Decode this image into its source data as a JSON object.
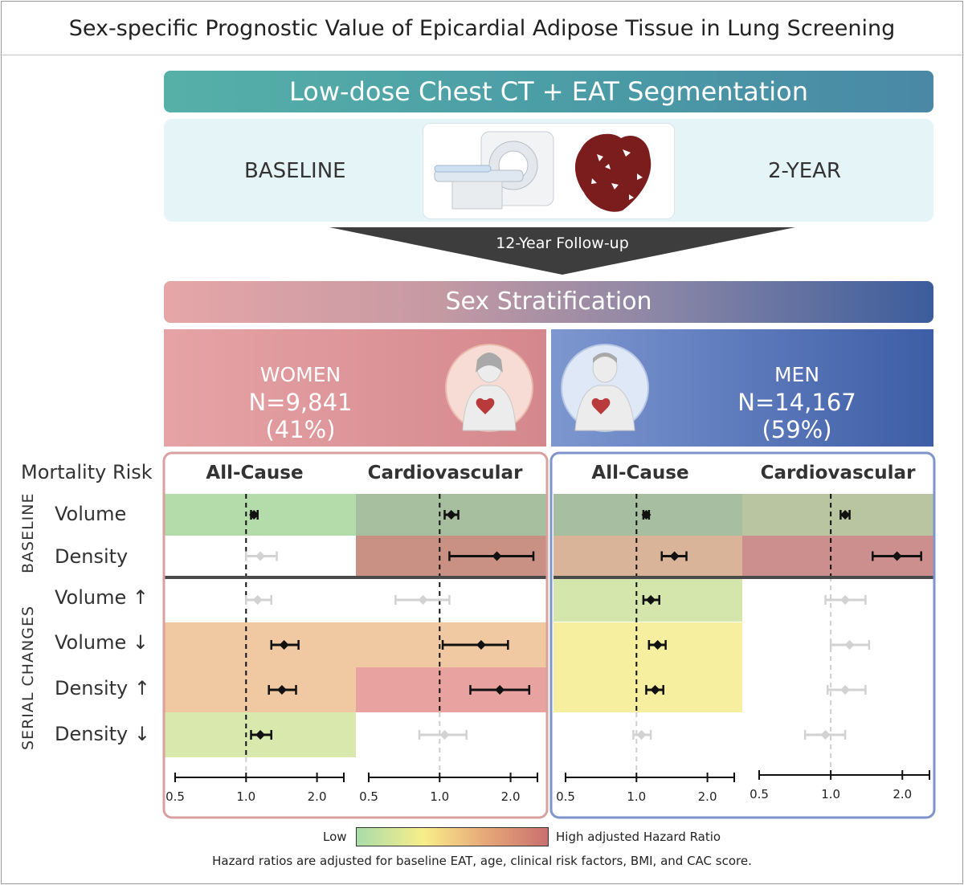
{
  "title": "Sex-specific Prognostic Value of Epicardial Adipose Tissue in Lung Screening",
  "imaging": {
    "banner": "Low-dose Chest CT + EAT Segmentation",
    "left_label": "BASELINE",
    "right_label": "2-YEAR",
    "illustration_icons": [
      "ct-scanner-icon",
      "eat-heart-icon"
    ]
  },
  "follow_up": "12-Year Follow-up",
  "stratification": {
    "banner": "Sex Stratification",
    "women": {
      "label": "WOMEN",
      "count": "N=9,841 (41%)",
      "icon": "female-torso-heart-icon"
    },
    "men": {
      "label": "MEN",
      "count": "N=14,167 (59%)",
      "icon": "male-torso-heart-icon"
    }
  },
  "table": {
    "header_label": "Mortality Risk",
    "group_labels": {
      "baseline": "BASELINE",
      "serial": "SERIAL CHANGES"
    },
    "column_titles": [
      "All-Cause",
      "Cardiovascular",
      "All-Cause",
      "Cardiovascular"
    ],
    "row_labels": [
      {
        "text": "Volume",
        "arrow": ""
      },
      {
        "text": "Density",
        "arrow": ""
      },
      {
        "text": "Volume",
        "arrow": "↑"
      },
      {
        "text": "Volume",
        "arrow": "↓"
      },
      {
        "text": "Density",
        "arrow": "↑"
      },
      {
        "text": "Density",
        "arrow": "↓"
      }
    ],
    "axis_ticks": [
      "0.5",
      "1.0",
      "2.0"
    ]
  },
  "chart_data": {
    "type": "forest",
    "scale": "log",
    "xlim": [
      0.5,
      2.6
    ],
    "reference_line": 1.0,
    "rows": [
      "Baseline Volume",
      "Baseline Density",
      "Volume increase",
      "Volume decrease",
      "Density increase",
      "Density decrease"
    ],
    "panels": [
      {
        "name": "Women All-Cause",
        "estimates": [
          {
            "hr": 1.08,
            "lo": 1.05,
            "hi": 1.12,
            "significant": true,
            "cell_color": "#b3dcaa"
          },
          {
            "hr": 1.15,
            "lo": 1.0,
            "hi": 1.35,
            "significant": false,
            "cell_color": "#ffffff"
          },
          {
            "hr": 1.12,
            "lo": 1.0,
            "hi": 1.28,
            "significant": false,
            "cell_color": "#ffffff"
          },
          {
            "hr": 1.45,
            "lo": 1.28,
            "hi": 1.67,
            "significant": true,
            "cell_color": "#f0c9a2"
          },
          {
            "hr": 1.42,
            "lo": 1.25,
            "hi": 1.63,
            "significant": true,
            "cell_color": "#f0c9a2"
          },
          {
            "hr": 1.15,
            "lo": 1.05,
            "hi": 1.28,
            "significant": true,
            "cell_color": "#d9e8ac"
          }
        ]
      },
      {
        "name": "Women Cardiovascular",
        "estimates": [
          {
            "hr": 1.12,
            "lo": 1.05,
            "hi": 1.2,
            "significant": true,
            "cell_color": "#a7bf9e"
          },
          {
            "hr": 1.75,
            "lo": 1.1,
            "hi": 2.5,
            "significant": true,
            "cell_color": "#c99184"
          },
          {
            "hr": 0.85,
            "lo": 0.65,
            "hi": 1.1,
            "significant": false,
            "cell_color": "#ffffff"
          },
          {
            "hr": 1.5,
            "lo": 1.03,
            "hi": 1.95,
            "significant": true,
            "cell_color": "#f0c9a2"
          },
          {
            "hr": 1.8,
            "lo": 1.35,
            "hi": 2.4,
            "significant": true,
            "cell_color": "#e8a3a0"
          },
          {
            "hr": 1.05,
            "lo": 0.82,
            "hi": 1.3,
            "significant": false,
            "cell_color": "#ffffff"
          }
        ]
      },
      {
        "name": "Men All-Cause",
        "estimates": [
          {
            "hr": 1.1,
            "lo": 1.07,
            "hi": 1.13,
            "significant": true,
            "cell_color": "#a7bfa0"
          },
          {
            "hr": 1.45,
            "lo": 1.28,
            "hi": 1.63,
            "significant": true,
            "cell_color": "#d9b499"
          },
          {
            "hr": 1.15,
            "lo": 1.07,
            "hi": 1.25,
            "significant": true,
            "cell_color": "#d5e6ac"
          },
          {
            "hr": 1.23,
            "lo": 1.13,
            "hi": 1.33,
            "significant": true,
            "cell_color": "#f5ef9f"
          },
          {
            "hr": 1.2,
            "lo": 1.1,
            "hi": 1.3,
            "significant": true,
            "cell_color": "#f5ef9f"
          },
          {
            "hr": 1.05,
            "lo": 0.97,
            "hi": 1.15,
            "significant": false,
            "cell_color": "#ffffff"
          }
        ]
      },
      {
        "name": "Men Cardiovascular",
        "estimates": [
          {
            "hr": 1.15,
            "lo": 1.1,
            "hi": 1.2,
            "significant": true,
            "cell_color": "#b9c5a0"
          },
          {
            "hr": 1.9,
            "lo": 1.5,
            "hi": 2.4,
            "significant": true,
            "cell_color": "#cc8f8e"
          },
          {
            "hr": 1.15,
            "lo": 0.95,
            "hi": 1.4,
            "significant": false,
            "cell_color": "#ffffff"
          },
          {
            "hr": 1.2,
            "lo": 1.0,
            "hi": 1.45,
            "significant": false,
            "cell_color": "#ffffff"
          },
          {
            "hr": 1.15,
            "lo": 0.97,
            "hi": 1.4,
            "significant": false,
            "cell_color": "#ffffff"
          },
          {
            "hr": 0.95,
            "lo": 0.78,
            "hi": 1.15,
            "significant": false,
            "cell_color": "#ffffff"
          }
        ]
      }
    ]
  },
  "legend": {
    "low": "Low",
    "high": "High adjusted Hazard Ratio"
  },
  "footnote": "Hazard ratios are adjusted for baseline EAT, age, clinical risk factors, BMI, and CAC score."
}
